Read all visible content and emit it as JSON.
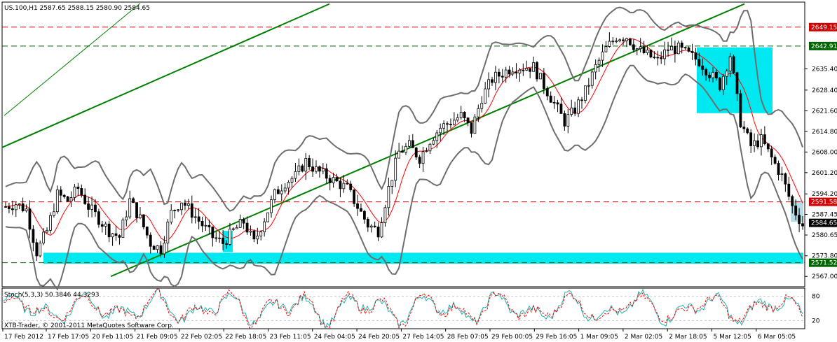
{
  "header": {
    "text": "US.100,H1  2587.65 2588.15 2580.90 2584.65"
  },
  "copyright": "XTB-Trader, © 2001-2011 MetaQuotes Software Corp.",
  "stoch_label": "Stoch(5,3,3) 50.3846 44.3293",
  "colors": {
    "bg": "#ffffff",
    "grid": "#c8c8c8",
    "candle": "#000000",
    "bollinger": "#6e6e6e",
    "ma": "#ff0000",
    "trend": "#008000",
    "resistance": "#d00000",
    "support": "#006400",
    "zone": "#00e8f0",
    "stoch_main": "#20b2aa",
    "stoch_signal": "#ff0000"
  },
  "chart_data": {
    "type": "line",
    "title": "US.100,H1",
    "ohlc_last": {
      "open": 2587.65,
      "high": 2588.15,
      "low": 2580.9,
      "close": 2584.65
    },
    "x_ticks": [
      "17 Feb 2012",
      "17 Feb 17:05",
      "20 Feb 11:05",
      "21 Feb 09:05",
      "22 Feb 02:05",
      "22 Feb 18:05",
      "23 Feb 11:05",
      "24 Feb 04:05",
      "24 Feb 20:05",
      "27 Feb 14:05",
      "28 Feb 07:05",
      "29 Feb 00:05",
      "29 Feb 16:05",
      "1 Mar 09:05",
      "2 Mar 02:05",
      "2 Mar 18:05",
      "5 Mar 12:05",
      "6 Mar 05:05"
    ],
    "y_ticks": [
      2567.0,
      2573.8,
      2580.65,
      2587.45,
      2594.2,
      2601.2,
      2608.0,
      2614.8,
      2621.6,
      2628.4,
      2635.4
    ],
    "ylim": [
      2563.6,
      2657.4
    ],
    "series": [
      {
        "values": [
          2590,
          2591,
          2589,
          2575,
          2582,
          2594,
          2592,
          2596,
          2590,
          2586,
          2582,
          2580,
          2592,
          2586,
          2578,
          2576,
          2588,
          2592,
          2588,
          2584,
          2580,
          2578,
          2582,
          2585,
          2578,
          2586,
          2594,
          2598,
          2600,
          2605,
          2602,
          2600,
          2598,
          2596,
          2590,
          2584,
          2582,
          2596,
          2608,
          2610,
          2606,
          2612,
          2616,
          2618,
          2620,
          2615,
          2626,
          2632,
          2634,
          2636,
          2636,
          2636,
          2630,
          2624,
          2618,
          2622,
          2628,
          2636,
          2642,
          2646,
          2646,
          2642,
          2640,
          2638,
          2642,
          2642,
          2640,
          2638,
          2634,
          2630,
          2640,
          2618,
          2610,
          2612,
          2606,
          2600,
          2590,
          2584
        ]
      }
    ],
    "levels": [
      {
        "label": "2649.15",
        "value": 2649.15
      },
      {
        "label": "2642.91",
        "value": 2642.91
      },
      {
        "label": "2591.58",
        "value": 2591.58
      },
      {
        "label": "2584.65",
        "value": 2584.65
      },
      {
        "label": "2571.52",
        "value": 2571.52
      }
    ],
    "stoch": {
      "main": 50.3846,
      "signal": 44.3293,
      "levels": [
        80,
        20
      ],
      "scale": [
        0,
        100
      ]
    }
  }
}
